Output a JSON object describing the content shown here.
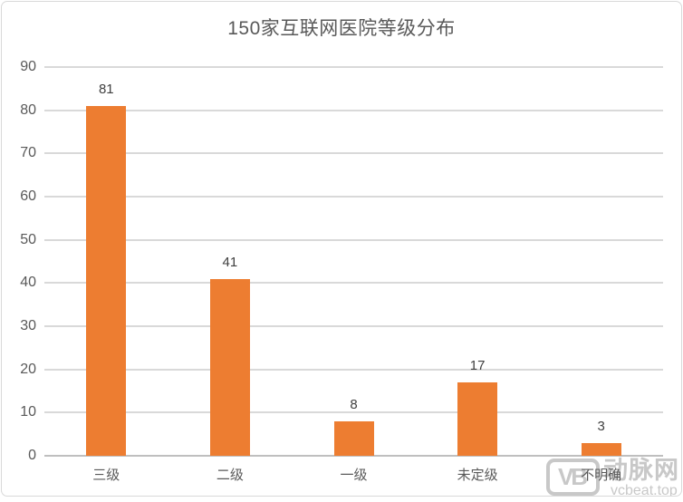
{
  "title": "150家互联网医院等级分布",
  "colors": {
    "bar": "#ed7d31",
    "gridline": "#d9d9d9",
    "axis_line": "#bfbfbf",
    "border": "#d9d9d9",
    "title_text": "#595959",
    "tick_text": "#595959",
    "data_label_text": "#404040",
    "watermark": "#c8c8c8"
  },
  "watermark": {
    "logo_text": "VB",
    "brand": "动脉网",
    "site": "vcbeat.top"
  },
  "chart_data": {
    "type": "bar",
    "title": "150家互联网医院等级分布",
    "categories": [
      "三级",
      "二级",
      "一级",
      "未定级",
      "不明确"
    ],
    "values": [
      81,
      41,
      8,
      17,
      3
    ],
    "data_labels_shown": true,
    "xlabel": "",
    "ylabel": "",
    "ylim": [
      0,
      90
    ],
    "yticks": [
      0,
      10,
      20,
      30,
      40,
      50,
      60,
      70,
      80,
      90
    ],
    "grid": true,
    "legend": false,
    "bar_color": "#ed7d31"
  }
}
